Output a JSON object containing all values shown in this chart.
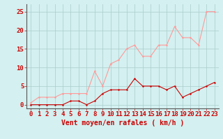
{
  "x": [
    0,
    1,
    2,
    3,
    4,
    5,
    6,
    7,
    8,
    9,
    10,
    11,
    12,
    13,
    14,
    15,
    16,
    17,
    18,
    19,
    20,
    21,
    22,
    23
  ],
  "y_mean": [
    0,
    0,
    0,
    0,
    0,
    1,
    1,
    0,
    1,
    3,
    4,
    4,
    4,
    7,
    5,
    5,
    5,
    4,
    5,
    2,
    3,
    4,
    5,
    6
  ],
  "y_gust": [
    0.5,
    2,
    2,
    2,
    3,
    3,
    3,
    3,
    9,
    5,
    11,
    12,
    15,
    16,
    13,
    13,
    16,
    16,
    21,
    18,
    18,
    16,
    25,
    25
  ],
  "line_color_mean": "#cc0000",
  "line_color_gust": "#ff9999",
  "bg_color": "#d4f0f0",
  "grid_color": "#aacccc",
  "xlabel": "Vent moyen/en rafales ( km/h )",
  "ylabel_ticks": [
    0,
    5,
    10,
    15,
    20,
    25
  ],
  "xlim": [
    -0.5,
    23.5
  ],
  "ylim": [
    -1,
    27
  ],
  "xlabel_fontsize": 7,
  "tick_fontsize": 6.5
}
